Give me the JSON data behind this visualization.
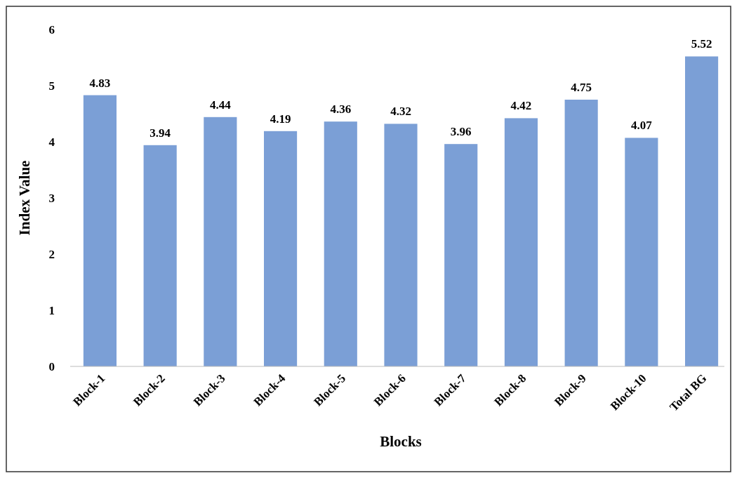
{
  "chart_data": {
    "type": "bar",
    "xlabel": "Blocks",
    "ylabel": "Index Value",
    "categories": [
      "Block-1",
      "Block-2",
      "Block-3",
      "Block-4",
      "Block-5",
      "Block-6",
      "Block-7",
      "Block-8",
      "Block-9",
      "Block-10",
      "Total BG"
    ],
    "values": [
      4.83,
      3.94,
      4.44,
      4.19,
      4.36,
      4.32,
      3.96,
      4.42,
      4.75,
      4.07,
      5.52
    ],
    "color": "#7b9fd6",
    "ylim": [
      0,
      6
    ],
    "yticks": [
      0,
      1,
      2,
      3,
      4,
      5,
      6
    ],
    "data_labels": true,
    "grid": false
  }
}
